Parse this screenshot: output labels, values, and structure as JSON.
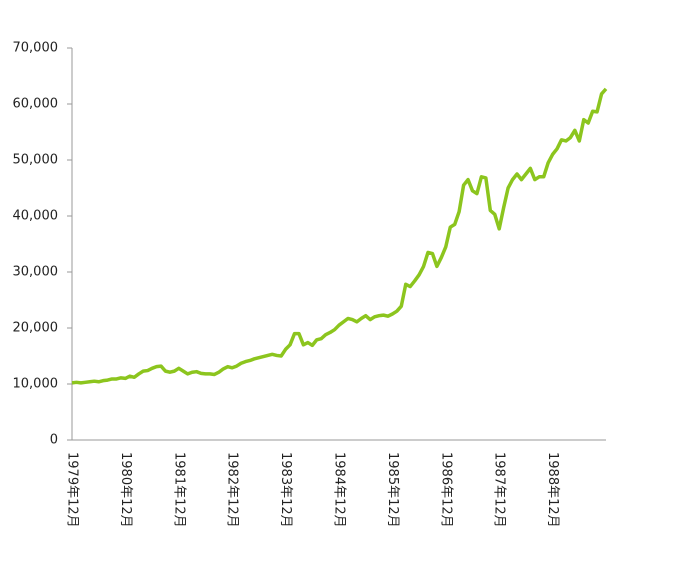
{
  "chart_data": {
    "type": "line",
    "categories": [
      "1979年12月",
      null,
      null,
      null,
      null,
      null,
      null,
      null,
      null,
      null,
      null,
      null,
      "1980年12月",
      null,
      null,
      null,
      null,
      null,
      null,
      null,
      null,
      null,
      null,
      null,
      "1981年12月",
      null,
      null,
      null,
      null,
      null,
      null,
      null,
      null,
      null,
      null,
      null,
      "1982年12月",
      null,
      null,
      null,
      null,
      null,
      null,
      null,
      null,
      null,
      null,
      null,
      "1983年12月",
      null,
      null,
      null,
      null,
      null,
      null,
      null,
      null,
      null,
      null,
      null,
      "1984年12月",
      null,
      null,
      null,
      null,
      null,
      null,
      null,
      null,
      null,
      null,
      null,
      "1985年12月",
      null,
      null,
      null,
      null,
      null,
      null,
      null,
      null,
      null,
      null,
      null,
      "1986年12月",
      null,
      null,
      null,
      null,
      null,
      null,
      null,
      null,
      null,
      null,
      null,
      "1987年12月",
      null,
      null,
      null,
      null,
      null,
      null,
      null,
      null,
      null,
      null,
      null,
      "1988年12月",
      null,
      null,
      null,
      null,
      null,
      null,
      null,
      null,
      null,
      null,
      null,
      null
    ],
    "values": [
      10200,
      10300,
      10200,
      10300,
      10400,
      10500,
      10400,
      10600,
      10700,
      10900,
      10900,
      11100,
      11000,
      11400,
      11200,
      11800,
      12300,
      12400,
      12800,
      13100,
      13200,
      12300,
      12100,
      12300,
      12800,
      12300,
      11800,
      12100,
      12200,
      11900,
      11800,
      11800,
      11700,
      12100,
      12700,
      13100,
      12900,
      13200,
      13700,
      14000,
      14200,
      14500,
      14700,
      14900,
      15100,
      15300,
      15100,
      15000,
      16200,
      17000,
      19000,
      19000,
      17000,
      17400,
      16900,
      17900,
      18100,
      18800,
      19200,
      19700,
      20500,
      21100,
      21700,
      21500,
      21100,
      21700,
      22200,
      21500,
      22000,
      22200,
      22300,
      22100,
      22500,
      23000,
      23900,
      27800,
      27400,
      28400,
      29500,
      31000,
      33500,
      33300,
      31000,
      32600,
      34500,
      38000,
      38500,
      40800,
      45500,
      46500,
      44500,
      44000,
      47000,
      46800,
      41000,
      40300,
      37700,
      41500,
      45000,
      46500,
      47500,
      46500,
      47500,
      48500,
      46500,
      47000,
      47000,
      49500,
      51000,
      52000,
      53600,
      53400,
      54000,
      55300,
      53400,
      57200,
      56600,
      58700,
      58600,
      61800,
      62700
    ],
    "color": "#8cc51e",
    "ylim": [
      0,
      70000
    ],
    "yticks": [
      0,
      {
        "value": 10000,
        "label": "10,000"
      },
      {
        "value": 20000,
        "label": "20,000"
      },
      {
        "value": 30000,
        "label": "30,000"
      },
      {
        "value": 40000,
        "label": "40,000"
      },
      {
        "value": 50000,
        "label": "50,000"
      },
      {
        "value": 60000,
        "label": "60,000"
      },
      {
        "value": 70000,
        "label": "70,000"
      }
    ],
    "grid": false
  }
}
